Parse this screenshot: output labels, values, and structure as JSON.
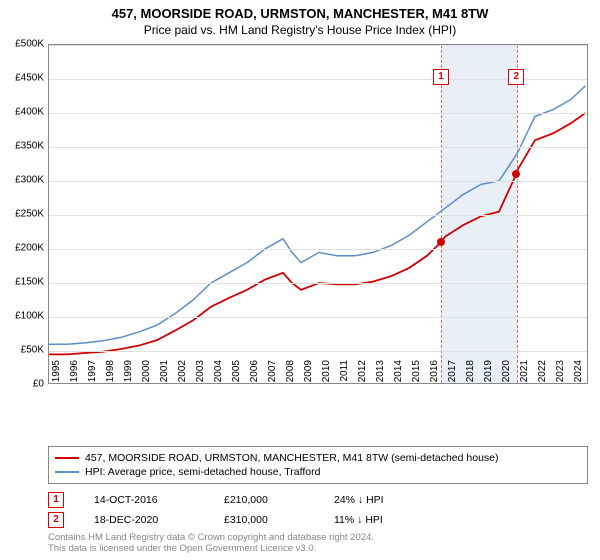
{
  "title": "457, MOORSIDE ROAD, URMSTON, MANCHESTER, M41 8TW",
  "subtitle": "Price paid vs. HM Land Registry's House Price Index (HPI)",
  "chart": {
    "type": "line",
    "ylim": [
      0,
      500000
    ],
    "ytick_step": 50000,
    "yticks": [
      "£0",
      "£50K",
      "£100K",
      "£150K",
      "£200K",
      "£250K",
      "£300K",
      "£350K",
      "£400K",
      "£450K",
      "£500K"
    ],
    "xlim": [
      1995,
      2025
    ],
    "xticks": [
      1995,
      1996,
      1997,
      1998,
      1999,
      2000,
      2001,
      2002,
      2003,
      2004,
      2005,
      2006,
      2007,
      2008,
      2009,
      2010,
      2011,
      2012,
      2013,
      2014,
      2015,
      2016,
      2017,
      2018,
      2019,
      2020,
      2021,
      2022,
      2023,
      2024
    ],
    "background_color": "#ffffff",
    "grid_color": "#e0e0e0",
    "highlight_band": {
      "start": 2016.78,
      "end": 2020.96,
      "fill": "#dce6f2",
      "border": "#d00000"
    },
    "series": [
      {
        "name": "hpi",
        "color": "#5b8fc7",
        "width": 1.5,
        "data": [
          [
            1995,
            60000
          ],
          [
            1996,
            60000
          ],
          [
            1997,
            62000
          ],
          [
            1998,
            65000
          ],
          [
            1999,
            70000
          ],
          [
            2000,
            78000
          ],
          [
            2001,
            88000
          ],
          [
            2002,
            105000
          ],
          [
            2003,
            125000
          ],
          [
            2004,
            150000
          ],
          [
            2005,
            165000
          ],
          [
            2006,
            180000
          ],
          [
            2007,
            200000
          ],
          [
            2008,
            215000
          ],
          [
            2008.5,
            195000
          ],
          [
            2009,
            180000
          ],
          [
            2010,
            195000
          ],
          [
            2011,
            190000
          ],
          [
            2012,
            190000
          ],
          [
            2013,
            195000
          ],
          [
            2014,
            205000
          ],
          [
            2015,
            220000
          ],
          [
            2016,
            240000
          ],
          [
            2017,
            260000
          ],
          [
            2018,
            280000
          ],
          [
            2019,
            295000
          ],
          [
            2020,
            300000
          ],
          [
            2021,
            340000
          ],
          [
            2022,
            395000
          ],
          [
            2023,
            405000
          ],
          [
            2024,
            420000
          ],
          [
            2024.8,
            440000
          ]
        ]
      },
      {
        "name": "price_paid",
        "color": "#d00000",
        "width": 1.8,
        "data": [
          [
            1995,
            45000
          ],
          [
            1996,
            45000
          ],
          [
            1997,
            47000
          ],
          [
            1998,
            49000
          ],
          [
            1999,
            53000
          ],
          [
            2000,
            58000
          ],
          [
            2001,
            66000
          ],
          [
            2002,
            80000
          ],
          [
            2003,
            95000
          ],
          [
            2004,
            115000
          ],
          [
            2005,
            128000
          ],
          [
            2006,
            140000
          ],
          [
            2007,
            155000
          ],
          [
            2008,
            165000
          ],
          [
            2008.5,
            150000
          ],
          [
            2009,
            140000
          ],
          [
            2010,
            150000
          ],
          [
            2011,
            148000
          ],
          [
            2012,
            148000
          ],
          [
            2013,
            152000
          ],
          [
            2014,
            160000
          ],
          [
            2015,
            172000
          ],
          [
            2016,
            190000
          ],
          [
            2016.78,
            210000
          ],
          [
            2017,
            218000
          ],
          [
            2018,
            235000
          ],
          [
            2019,
            248000
          ],
          [
            2020,
            255000
          ],
          [
            2020.96,
            310000
          ],
          [
            2021,
            315000
          ],
          [
            2022,
            360000
          ],
          [
            2023,
            370000
          ],
          [
            2024,
            385000
          ],
          [
            2024.8,
            400000
          ]
        ]
      }
    ],
    "marker_points": [
      {
        "num": "1",
        "x": 2016.78,
        "y": 210000,
        "color": "#d00000"
      },
      {
        "num": "2",
        "x": 2020.96,
        "y": 310000,
        "color": "#d00000"
      }
    ]
  },
  "legend": {
    "items": [
      {
        "label": "457, MOORSIDE ROAD, URMSTON, MANCHESTER, M41 8TW (semi-detached house)",
        "color": "#d00000"
      },
      {
        "label": "HPI: Average price, semi-detached house, Trafford",
        "color": "#5b8fc7"
      }
    ]
  },
  "sales": [
    {
      "num": "1",
      "date": "14-OCT-2016",
      "price": "£210,000",
      "pct": "24% ↓ HPI"
    },
    {
      "num": "2",
      "date": "18-DEC-2020",
      "price": "£310,000",
      "pct": "11% ↓ HPI"
    }
  ],
  "footer": {
    "line1": "Contains HM Land Registry data © Crown copyright and database right 2024.",
    "line2": "This data is licensed under the Open Government Licence v3.0."
  }
}
